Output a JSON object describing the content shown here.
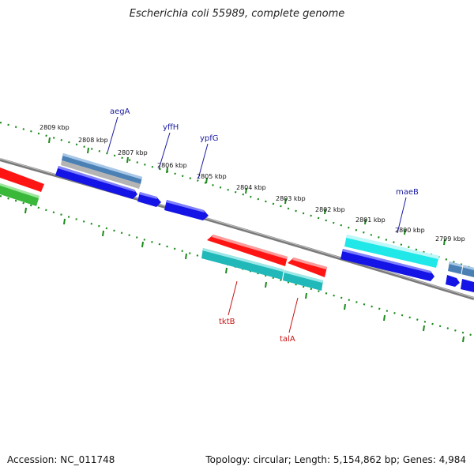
{
  "title": "Escherichia coli 55989, complete genome",
  "footer": {
    "accession": "Accession: NC_011748",
    "info": "Topology: circular; Length: 5,154,862 bp; Genes: 4,984"
  },
  "colors": {
    "backbone": "#808080",
    "tick": "#1a8a1a",
    "label_forward": "#1a1aa0",
    "label_reverse": "#c81414",
    "blue": "#1414e6",
    "red": "#ff1414",
    "teal": "#20b8b8",
    "cyan": "#20e8e8",
    "steel": "#4a80b4",
    "green": "#3ab83a"
  },
  "tick_labels": [
    "2809 kbp",
    "2808 kbp",
    "2807 kbp",
    "2806 kbp",
    "2805 kbp",
    "2804 kbp",
    "2803 kbp",
    "2802 kbp",
    "2801 kbp",
    "2800 kbp",
    "2799 kbp"
  ],
  "genes": [
    {
      "name": "aegA",
      "strand": "forward"
    },
    {
      "name": "yffH",
      "strand": "forward"
    },
    {
      "name": "ypfG",
      "strand": "forward"
    },
    {
      "name": "maeB",
      "strand": "forward"
    },
    {
      "name": "tktB",
      "strand": "reverse"
    },
    {
      "name": "talA",
      "strand": "reverse"
    }
  ]
}
